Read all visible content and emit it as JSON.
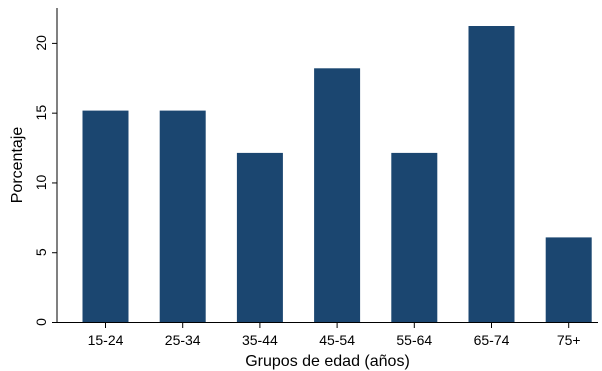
{
  "chart_data": {
    "type": "bar",
    "categories": [
      "15-24",
      "25-34",
      "35-44",
      "45-54",
      "55-64",
      "65-74",
      "75+"
    ],
    "values": [
      15.15,
      15.15,
      12.12,
      18.18,
      12.12,
      21.21,
      6.06
    ],
    "xlabel": "Grupos de edad (años)",
    "ylabel": "Porcentaje",
    "ylim": [
      0,
      22.5
    ],
    "yticks": [
      0,
      5,
      10,
      15,
      20
    ],
    "grid": false,
    "bar_color": "#1b4670",
    "axis_color": "#000000"
  }
}
